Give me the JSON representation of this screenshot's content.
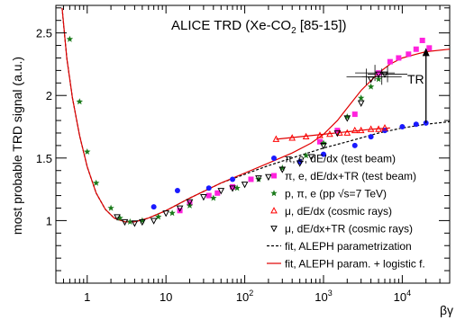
{
  "chart_data": {
    "type": "scatter",
    "title_main": "ALICE TRD (Xe-CO",
    "title_sub": "2",
    "title_tail": " [85-15])",
    "ylabel": "most probable TRD signal (a.u.)",
    "xlabel": "βγ",
    "x_scale": "log",
    "xlim": [
      0.4,
      40000
    ],
    "ylim": [
      0.5,
      2.72
    ],
    "grid": false,
    "legend_position": "bottom-right",
    "annotation": "TR",
    "tr_arrow": {
      "x": 20000,
      "y_from": 1.78,
      "y_to": 2.38
    },
    "x_ticks": [
      {
        "v": 1,
        "label": "1",
        "sup": ""
      },
      {
        "v": 10,
        "label": "10",
        "sup": ""
      },
      {
        "v": 100,
        "label": "10",
        "sup": "2"
      },
      {
        "v": 1000,
        "label": "10",
        "sup": "3"
      },
      {
        "v": 10000,
        "label": "10",
        "sup": "4"
      }
    ],
    "y_ticks": [
      {
        "v": 1,
        "label": "1"
      },
      {
        "v": 1.5,
        "label": "1.5"
      },
      {
        "v": 2,
        "label": "2"
      },
      {
        "v": 2.5,
        "label": "2.5"
      }
    ],
    "legend": [
      {
        "marker": "circle",
        "color": "#1a1aff",
        "text": "π, e, dE/dx (test beam)"
      },
      {
        "marker": "square",
        "color": "#ff22dd",
        "text": "π, e, dE/dx+TR (test beam)"
      },
      {
        "marker": "star",
        "color": "#1a7a1a",
        "text": "p, π, e (pp √s=7 TeV)"
      },
      {
        "marker": "triangle-up",
        "color": "#ff0000",
        "text": "μ, dE/dx (cosmic rays)"
      },
      {
        "marker": "triangle-down",
        "color": "#000000",
        "text": "μ, dE/dx+TR (cosmic rays)"
      },
      {
        "marker": "dash",
        "color": "#000000",
        "text": "fit, ALEPH parametrization"
      },
      {
        "marker": "line",
        "color": "#e00000",
        "text": "fit, ALEPH param. + logistic f."
      }
    ],
    "series": [
      {
        "name": "π, e, dE/dx (test beam)",
        "marker": "circle",
        "color": "#1a1aff",
        "x": [
          7,
          14,
          35,
          70,
          500,
          1000,
          2500,
          4000,
          6000,
          10000,
          15000,
          20000
        ],
        "y": [
          1.11,
          1.24,
          1.26,
          1.33,
          1.47,
          1.53,
          1.6,
          1.67,
          1.72,
          1.75,
          1.77,
          1.78
        ]
      },
      {
        "name": "π, e, dE/dx+TR (test beam)",
        "marker": "square",
        "color": "#ff22dd",
        "x": [
          15,
          20,
          35,
          45,
          70,
          120,
          900,
          1500,
          2500,
          5000,
          7000,
          9000,
          12000,
          15000,
          18000,
          22000
        ],
        "y": [
          1.08,
          1.14,
          1.2,
          1.22,
          1.27,
          1.33,
          1.63,
          1.72,
          1.85,
          2.18,
          2.27,
          2.3,
          2.33,
          2.37,
          2.44,
          2.38
        ]
      },
      {
        "name": "p, π, e (pp √s=7 TeV)",
        "marker": "star",
        "color": "#1a7a1a",
        "x": [
          0.6,
          0.8,
          1.0,
          1.3,
          2.0,
          2.6,
          3.5,
          5.0,
          8.0,
          12,
          20,
          40,
          80,
          150,
          300,
          600,
          1000,
          2000,
          3000,
          4000,
          5000
        ],
        "y": [
          2.45,
          1.95,
          1.55,
          1.3,
          1.1,
          1.02,
          0.99,
          1.0,
          1.03,
          1.06,
          1.12,
          1.18,
          1.26,
          1.33,
          1.42,
          1.52,
          1.62,
          1.83,
          1.98,
          2.07,
          2.13
        ]
      },
      {
        "name": "μ, dE/dx (cosmic rays)",
        "marker": "triangle-up",
        "color": "#ff0000",
        "x": [
          250,
          400,
          600,
          900,
          1200,
          1600,
          2000,
          2500,
          3000,
          4000,
          5000,
          6000
        ],
        "y": [
          1.65,
          1.66,
          1.67,
          1.68,
          1.69,
          1.7,
          1.7,
          1.72,
          1.72,
          1.73,
          1.73,
          1.74
        ]
      },
      {
        "name": "μ, dE/dx+TR (cosmic rays)",
        "marker": "triangle-down",
        "color": "#000000",
        "x": [
          2.4,
          3.0,
          4.0,
          5.0,
          7.0,
          10,
          15,
          20,
          30,
          50,
          70,
          100,
          150,
          200,
          300,
          500,
          700,
          1000,
          1500,
          2000,
          3000,
          4000,
          5000,
          6000
        ],
        "y": [
          1.03,
          0.99,
          0.98,
          0.99,
          1.0,
          1.06,
          1.1,
          1.15,
          1.19,
          1.24,
          1.26,
          1.29,
          1.34,
          1.35,
          1.41,
          1.46,
          1.51,
          1.6,
          1.7,
          1.82,
          1.94,
          2.13,
          2.17,
          2.17
        ]
      }
    ],
    "curves": {
      "dashed_fit": {
        "color": "#000000",
        "x": [
          0.48,
          0.55,
          0.65,
          0.8,
          1,
          1.3,
          1.7,
          2.2,
          3,
          4,
          6,
          10,
          20,
          50,
          100,
          200,
          500,
          1000,
          2000,
          5000,
          10000,
          20000,
          40000
        ],
        "y": [
          2.7,
          2.3,
          1.98,
          1.68,
          1.43,
          1.22,
          1.09,
          1.02,
          0.99,
          0.99,
          1.02,
          1.08,
          1.18,
          1.3,
          1.37,
          1.44,
          1.52,
          1.58,
          1.63,
          1.7,
          1.74,
          1.77,
          1.79
        ]
      },
      "logistic_fit": {
        "color": "#e00000",
        "x": [
          0.48,
          0.55,
          0.65,
          0.8,
          1,
          1.3,
          1.7,
          2.2,
          3,
          4,
          6,
          10,
          20,
          50,
          100,
          200,
          400,
          700,
          1000,
          1500,
          2000,
          3000,
          5000,
          7000,
          10000,
          15000,
          20000,
          40000
        ],
        "y": [
          2.7,
          2.3,
          1.98,
          1.68,
          1.43,
          1.22,
          1.09,
          1.02,
          0.99,
          0.99,
          1.02,
          1.08,
          1.18,
          1.3,
          1.38,
          1.46,
          1.54,
          1.62,
          1.69,
          1.8,
          1.9,
          2.04,
          2.18,
          2.25,
          2.3,
          2.33,
          2.35,
          2.37
        ]
      },
      "muon_fit": {
        "color": "#e00000",
        "x": [
          250,
          500,
          1000,
          2000,
          4000,
          7000
        ],
        "y": [
          1.65,
          1.67,
          1.69,
          1.71,
          1.73,
          1.74
        ]
      },
      "error_points": {
        "color": "#000000",
        "x": [
          3500,
          4500,
          5500,
          6500
        ],
        "y": [
          2.15,
          2.18,
          2.15,
          2.17
        ]
      }
    }
  }
}
